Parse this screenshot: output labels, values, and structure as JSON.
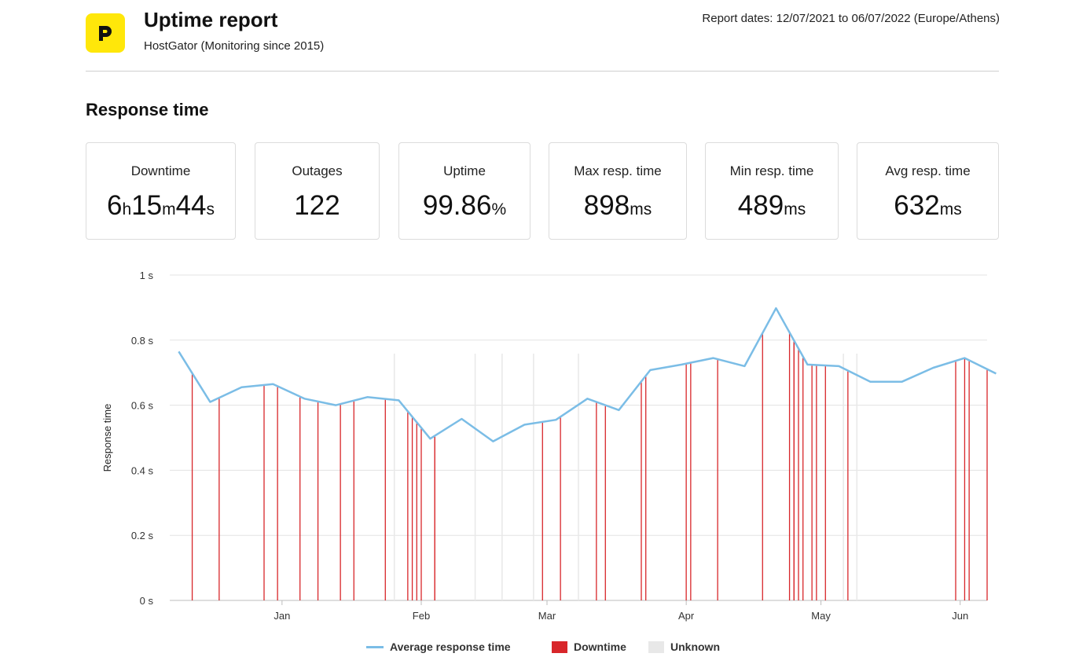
{
  "header": {
    "title": "Uptime report",
    "subtitle": "HostGator (Monitoring since 2015)",
    "report_dates": "Report dates: 12/07/2021 to 06/07/2022 (Europe/Athens)",
    "logo_icon": "p-logo-icon",
    "logo_color": "#ffe70a"
  },
  "section_title": "Response time",
  "stats": [
    {
      "label": "Downtime",
      "parts": [
        [
          "6",
          "h"
        ],
        [
          "15",
          "m"
        ],
        [
          "44",
          "s"
        ]
      ]
    },
    {
      "label": "Outages",
      "parts": [
        [
          "122",
          ""
        ]
      ]
    },
    {
      "label": "Uptime",
      "parts": [
        [
          "99.86",
          "%"
        ]
      ]
    },
    {
      "label": "Max resp. time",
      "parts": [
        [
          "898",
          "ms"
        ]
      ]
    },
    {
      "label": "Min resp. time",
      "parts": [
        [
          "489",
          "ms"
        ]
      ]
    },
    {
      "label": "Avg resp. time",
      "parts": [
        [
          "632",
          "ms"
        ]
      ]
    }
  ],
  "chart_data": {
    "type": "line",
    "ylabel": "Response time",
    "ylim": [
      0,
      1
    ],
    "y_ticks": [
      {
        "value": 0,
        "label": "0 s"
      },
      {
        "value": 0.2,
        "label": "0.2 s"
      },
      {
        "value": 0.4,
        "label": "0.4 s"
      },
      {
        "value": 0.6,
        "label": "0.6 s"
      },
      {
        "value": 0.8,
        "label": "0.8 s"
      },
      {
        "value": 1,
        "label": "1 s"
      }
    ],
    "xlim": [
      "2021-12-07",
      "2022-06-07"
    ],
    "x_ticks": [
      {
        "date": "2022-01-01",
        "label": "Jan"
      },
      {
        "date": "2022-02-01",
        "label": "Feb"
      },
      {
        "date": "2022-03-01",
        "label": "Mar"
      },
      {
        "date": "2022-04-01",
        "label": "Apr"
      },
      {
        "date": "2022-05-01",
        "label": "May"
      },
      {
        "date": "2022-06-01",
        "label": "Jun"
      }
    ],
    "grid": true,
    "legend_placement": "bottom",
    "series": [
      {
        "name": "Average response time",
        "color": "#7bbde6",
        "points": [
          [
            "2021-12-09",
            0.765
          ],
          [
            "2021-12-16",
            0.61
          ],
          [
            "2021-12-23",
            0.655
          ],
          [
            "2021-12-30",
            0.665
          ],
          [
            "2022-01-06",
            0.62
          ],
          [
            "2022-01-13",
            0.6
          ],
          [
            "2022-01-20",
            0.625
          ],
          [
            "2022-01-27",
            0.615
          ],
          [
            "2022-02-03",
            0.497
          ],
          [
            "2022-02-10",
            0.558
          ],
          [
            "2022-02-17",
            0.489
          ],
          [
            "2022-02-24",
            0.54
          ],
          [
            "2022-03-03",
            0.555
          ],
          [
            "2022-03-10",
            0.62
          ],
          [
            "2022-03-17",
            0.585
          ],
          [
            "2022-03-24",
            0.708
          ],
          [
            "2022-03-31",
            0.725
          ],
          [
            "2022-04-07",
            0.745
          ],
          [
            "2022-04-14",
            0.72
          ],
          [
            "2022-04-21",
            0.898
          ],
          [
            "2022-04-28",
            0.725
          ],
          [
            "2022-05-05",
            0.72
          ],
          [
            "2022-05-12",
            0.672
          ],
          [
            "2022-05-19",
            0.672
          ],
          [
            "2022-05-26",
            0.715
          ],
          [
            "2022-06-02",
            0.745
          ],
          [
            "2022-06-09",
            0.697
          ]
        ]
      },
      {
        "name": "Downtime",
        "color": "#d8262a",
        "dates": [
          "2021-12-12",
          "2021-12-18",
          "2021-12-28",
          "2021-12-31",
          "2022-01-05",
          "2022-01-09",
          "2022-01-14",
          "2022-01-17",
          "2022-01-24",
          "2022-01-29",
          "2022-01-30",
          "2022-01-31",
          "2022-02-01",
          "2022-02-04",
          "2022-02-04",
          "2022-02-28",
          "2022-03-04",
          "2022-03-12",
          "2022-03-14",
          "2022-03-22",
          "2022-03-23",
          "2022-04-01",
          "2022-04-02",
          "2022-04-08",
          "2022-04-18",
          "2022-04-24",
          "2022-04-25",
          "2022-04-25",
          "2022-04-26",
          "2022-04-27",
          "2022-04-29",
          "2022-04-30",
          "2022-05-02",
          "2022-05-07",
          "2022-05-31",
          "2022-06-02",
          "2022-06-03",
          "2022-06-07"
        ]
      },
      {
        "name": "Unknown",
        "color": "#e8e8e8",
        "dates": [
          "2022-01-26",
          "2022-02-13",
          "2022-02-19",
          "2022-02-26",
          "2022-03-08",
          "2022-05-06",
          "2022-05-09"
        ]
      }
    ]
  }
}
